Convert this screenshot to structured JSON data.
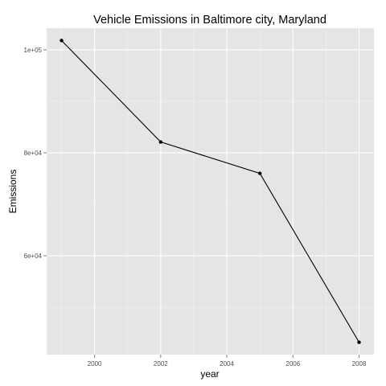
{
  "chart_data": {
    "type": "line",
    "title": "Vehicle Emissions in Baltimore city, Maryland",
    "xlabel": "year",
    "ylabel": "Emissions",
    "x": [
      1999,
      2002,
      2005,
      2008
    ],
    "values": [
      101800,
      82100,
      76000,
      43200
    ],
    "xlim": [
      1998.55,
      2008.45
    ],
    "ylim": [
      40800,
      104200
    ],
    "x_ticks": [
      2000,
      2002,
      2004,
      2006,
      2008
    ],
    "x_tick_labels": [
      "2000",
      "2002",
      "2004",
      "2006",
      "2008"
    ],
    "y_ticks": [
      60000,
      80000,
      100000
    ],
    "y_tick_labels": [
      "6e+04",
      "8e+04",
      "1e+05"
    ],
    "grid": true,
    "colors": {
      "panel_background": "#e5e5e5",
      "grid_major": "#ffffff",
      "grid_minor": "#f2f2f2",
      "line": "#000000",
      "points": "#000000",
      "tick_marks": "#7f7f7f"
    }
  }
}
